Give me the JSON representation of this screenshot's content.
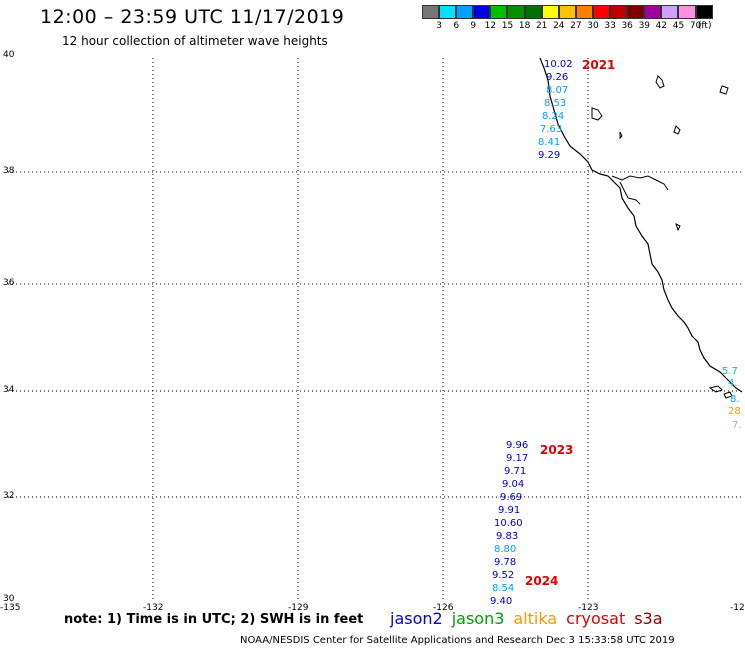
{
  "header": {
    "title": "12:00 – 23:59 UTC 11/17/2019",
    "subtitle": "12 hour collection of altimeter wave heights"
  },
  "colorbar": {
    "colors": [
      "#777777",
      "#00e0ff",
      "#00a0ff",
      "#0000e0",
      "#00c000",
      "#009000",
      "#007000",
      "#ffff00",
      "#ffc000",
      "#ff8000",
      "#ff0000",
      "#c00000",
      "#800000",
      "#a000a0",
      "#d0a0ff",
      "#ff90e0",
      "#000000"
    ],
    "labels": [
      "3",
      "6",
      "9",
      "12",
      "15",
      "18",
      "21",
      "24",
      "27",
      "30",
      "33",
      "36",
      "39",
      "42",
      "45",
      "70",
      "(ft)"
    ]
  },
  "axes": {
    "lat_labels": [
      "40",
      "38",
      "36",
      "34",
      "32",
      "30"
    ],
    "lon_labels": [
      "-135",
      "-132",
      "-129",
      "-126",
      "-123",
      "-12"
    ]
  },
  "passes": {
    "p2021": {
      "label": "2021",
      "values": [
        "10.02",
        "9.26",
        "8.07",
        "8.53",
        "8.24",
        "7.63",
        "8.41",
        "9.29"
      ]
    },
    "p2023": {
      "label": "2023",
      "values": [
        "9.96",
        "9.17",
        "9.71",
        "9.04",
        "9.69",
        "9.91",
        "10.60",
        "9.83",
        "8.80",
        "9.78",
        "9.52",
        "8.54",
        "9.40"
      ]
    },
    "p2024": {
      "label": "2024"
    },
    "edge": {
      "values": [
        "5.7",
        "4.",
        "8.",
        "28",
        "7."
      ]
    }
  },
  "footer": {
    "note": "note:  1) Time is in UTC;  2) SWH is in feet",
    "legend": [
      {
        "name": "jason2",
        "color": "#0000e0"
      },
      {
        "name": "jason3",
        "color": "#00a000"
      },
      {
        "name": "altika",
        "color": "#ff9900"
      },
      {
        "name": "cryosat",
        "color": "#e00000"
      },
      {
        "name": "s3a",
        "color": "#900000"
      }
    ],
    "credit": "NOAA/NESDIS Center for Satellite Applications and Research    Dec  3 15:33:58 UTC 2019"
  }
}
